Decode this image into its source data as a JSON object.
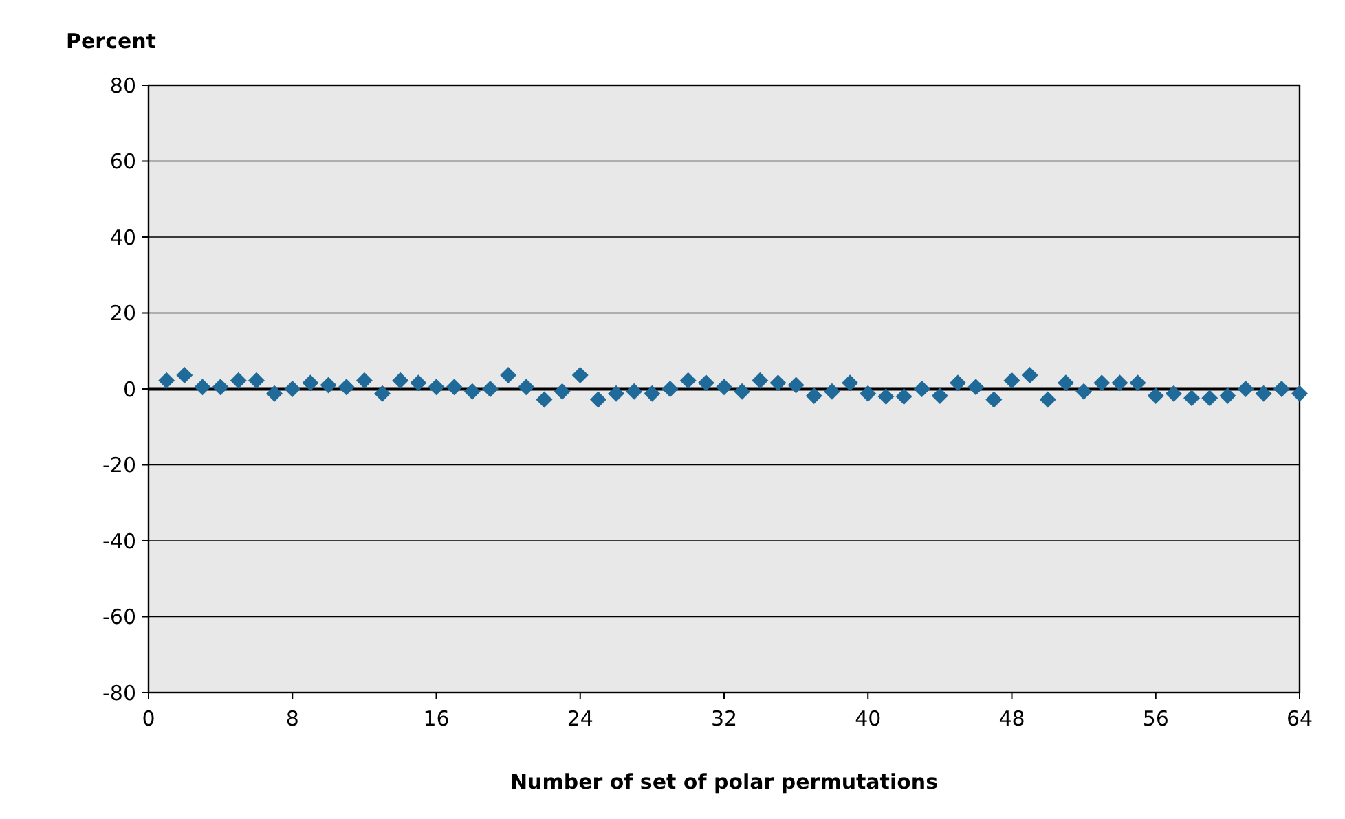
{
  "chart_data": {
    "type": "scatter",
    "xlabel": "Number of set of polar permutations",
    "ylabel": "Percent",
    "x": [
      1,
      2,
      3,
      4,
      5,
      6,
      7,
      8,
      9,
      10,
      11,
      12,
      13,
      14,
      15,
      16,
      17,
      18,
      19,
      20,
      21,
      22,
      23,
      24,
      25,
      26,
      27,
      28,
      29,
      30,
      31,
      32,
      33,
      34,
      35,
      36,
      37,
      38,
      39,
      40,
      41,
      42,
      43,
      44,
      45,
      46,
      47,
      48,
      49,
      50,
      51,
      52,
      53,
      54,
      55,
      56,
      57,
      58,
      59,
      60,
      61,
      62,
      63,
      64
    ],
    "series": [
      {
        "color": "#1f6a99",
        "values": [
          2.2,
          3.6,
          0.5,
          0.5,
          2.2,
          2.2,
          -1.2,
          0,
          1.6,
          1,
          0.5,
          2.2,
          -1.2,
          2.2,
          1.6,
          0.5,
          0.5,
          -0.7,
          0,
          3.6,
          0.5,
          -2.8,
          -0.7,
          3.6,
          -2.8,
          -1.2,
          -0.7,
          -1.2,
          0,
          2.2,
          1.6,
          0.5,
          -0.7,
          2.2,
          1.6,
          1,
          -1.8,
          -0.7,
          1.6,
          -1.2,
          -2,
          -2,
          0,
          -1.8,
          1.6,
          0.5,
          -2.8,
          2.2,
          3.6,
          -2.8,
          1.6,
          -0.7,
          1.6,
          1.6,
          1.6,
          -1.8,
          -1.2,
          -2.4,
          -2.4,
          -1.8,
          0,
          -1.2,
          0,
          -1.2
        ]
      }
    ],
    "xlim": [
      0,
      64
    ],
    "xticks": [
      0,
      8,
      16,
      24,
      32,
      40,
      48,
      56,
      64
    ],
    "ylim": [
      -80,
      80
    ],
    "yticks": [
      -80,
      -60,
      -40,
      -20,
      0,
      20,
      40,
      60,
      80
    ],
    "grid": "y",
    "marker": "diamond",
    "ref_lines": [
      {
        "axis": "y",
        "value": 0,
        "color": "#000000"
      }
    ]
  }
}
